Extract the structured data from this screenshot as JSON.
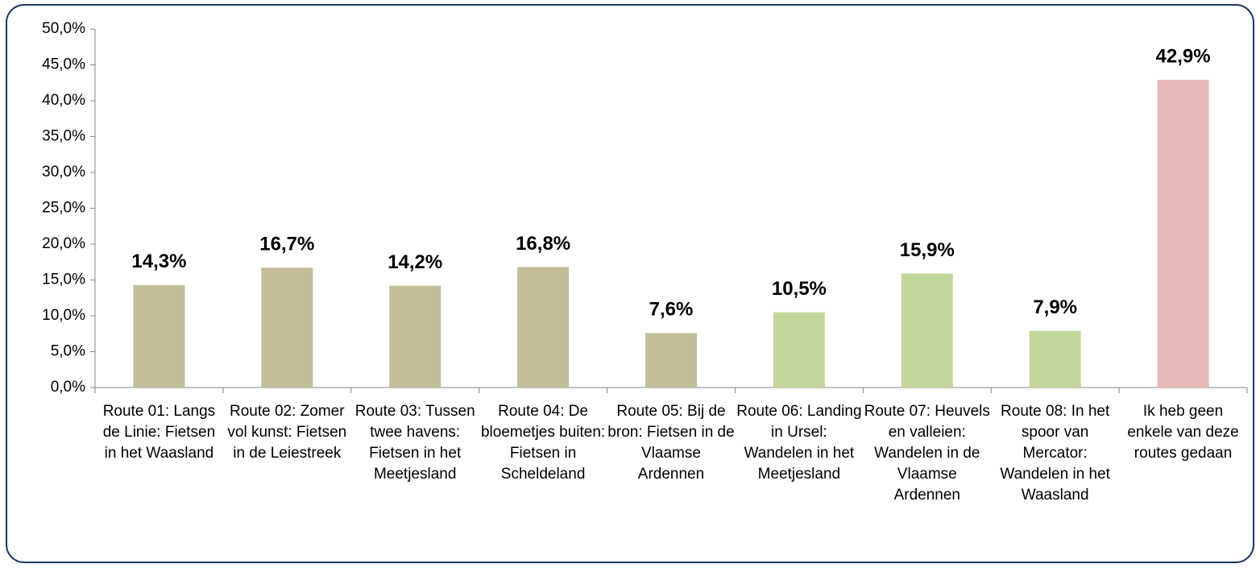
{
  "chart_data": {
    "type": "bar",
    "categories": [
      "Route 01: Langs de Linie: Fietsen in het Waasland",
      "Route 02: Zomer vol kunst: Fietsen in de Leiestreek",
      "Route 03: Tussen twee havens: Fietsen in het Meetjesland",
      "Route 04: De bloemetjes buiten: Fietsen in Scheldeland",
      "Route 05: Bij de bron: Fietsen in de Vlaamse Ardennen",
      "Route 06: Landing in Ursel: Wandelen in het Meetjesland",
      "Route 07: Heuvels en valleien: Wandelen in de Vlaamse Ardennen",
      "Route 08: In het spoor van Mercator: Wandelen in het Waasland",
      "Ik heb geen enkele van deze routes gedaan"
    ],
    "values": [
      14.3,
      16.7,
      14.2,
      16.8,
      7.6,
      10.5,
      15.9,
      7.9,
      42.9
    ],
    "value_labels": [
      "14,3%",
      "16,7%",
      "14,2%",
      "16,8%",
      "7,6%",
      "10,5%",
      "15,9%",
      "7,9%",
      "42,9%"
    ],
    "colors": [
      "#c4bd97",
      "#c4bd97",
      "#c4bd97",
      "#c4bd97",
      "#c4bd97",
      "#c3d69b",
      "#c3d69b",
      "#c3d69b",
      "#e6b9b8"
    ],
    "ylim": [
      0,
      50
    ],
    "yticks": [
      {
        "value": 0,
        "label": "0,0%"
      },
      {
        "value": 5,
        "label": "5,0%"
      },
      {
        "value": 10,
        "label": "10,0%"
      },
      {
        "value": 15,
        "label": "15,0%"
      },
      {
        "value": 20,
        "label": "20,0%"
      },
      {
        "value": 25,
        "label": "25,0%"
      },
      {
        "value": 30,
        "label": "30,0%"
      },
      {
        "value": 35,
        "label": "35,0%"
      },
      {
        "value": 40,
        "label": "40,0%"
      },
      {
        "value": 45,
        "label": "45,0%"
      },
      {
        "value": 50,
        "label": "50,0%"
      }
    ],
    "grid": false
  }
}
